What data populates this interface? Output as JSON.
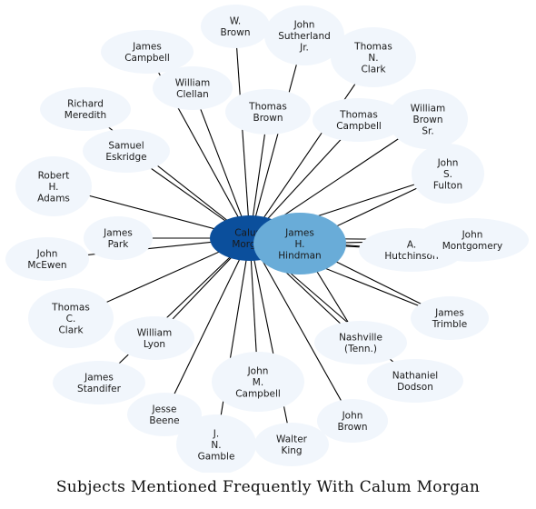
{
  "caption": "Subjects Mentioned Frequently With Calum Morgan",
  "colors": {
    "node_fill": "#f1f6fc",
    "edge": "#000000",
    "primary_fill": "#0b4f9c",
    "secondary_fill": "#69acd8"
  },
  "primary": {
    "id": "calum_morgan",
    "lines": [
      "Calum",
      "Morgan"
    ]
  },
  "secondary": {
    "id": "james_hindman",
    "lines": [
      "James",
      "H.",
      "Hindman"
    ]
  },
  "nodes": [
    {
      "id": "w_brown",
      "lines": [
        "W.",
        "Brown"
      ],
      "hindman_link": false
    },
    {
      "id": "john_sutherland_jr",
      "lines": [
        "John",
        "Sutherland",
        "Jr."
      ],
      "hindman_link": false
    },
    {
      "id": "thomas_n_clark",
      "lines": [
        "Thomas",
        "N.",
        "Clark"
      ],
      "hindman_link": false
    },
    {
      "id": "james_campbell_1",
      "lines": [
        "James",
        "Campbell"
      ],
      "hindman_link": false
    },
    {
      "id": "william_clellan",
      "lines": [
        "William",
        "Clellan"
      ],
      "hindman_link": false
    },
    {
      "id": "thomas_brown",
      "lines": [
        "Thomas",
        "Brown"
      ],
      "hindman_link": false
    },
    {
      "id": "thomas_campbell",
      "lines": [
        "Thomas",
        "Campbell"
      ],
      "hindman_link": false
    },
    {
      "id": "william_brown_sr",
      "lines": [
        "William",
        "Brown",
        "Sr."
      ],
      "hindman_link": false
    },
    {
      "id": "richard_meredith",
      "lines": [
        "Richard",
        "Meredith"
      ],
      "hindman_link": false
    },
    {
      "id": "samuel_eskridge",
      "lines": [
        "Samuel",
        "Eskridge"
      ],
      "hindman_link": false
    },
    {
      "id": "john_s_fulton",
      "lines": [
        "John",
        "S.",
        "Fulton"
      ],
      "hindman_link": true
    },
    {
      "id": "robert_h_adams",
      "lines": [
        "Robert",
        "H.",
        "Adams"
      ],
      "hindman_link": false
    },
    {
      "id": "james_park",
      "lines": [
        "James",
        "Park"
      ],
      "hindman_link": false
    },
    {
      "id": "a_hutchinson",
      "lines": [
        "A.",
        "Hutchinson"
      ],
      "hindman_link": true
    },
    {
      "id": "john_montgomery",
      "lines": [
        "John",
        "Montgomery"
      ],
      "hindman_link": true
    },
    {
      "id": "john_mcewen",
      "lines": [
        "John",
        "McEwen"
      ],
      "hindman_link": false
    },
    {
      "id": "thomas_c_clark",
      "lines": [
        "Thomas",
        "C.",
        "Clark"
      ],
      "hindman_link": false
    },
    {
      "id": "william_lyon",
      "lines": [
        "William",
        "Lyon"
      ],
      "hindman_link": false
    },
    {
      "id": "james_trimble",
      "lines": [
        "James",
        "Trimble"
      ],
      "hindman_link": true
    },
    {
      "id": "nashville_tenn",
      "lines": [
        "Nashville",
        "(Tenn.)"
      ],
      "hindman_link": true
    },
    {
      "id": "james_standifer",
      "lines": [
        "James",
        "Standifer"
      ],
      "hindman_link": false
    },
    {
      "id": "john_m_campbell",
      "lines": [
        "John",
        "M.",
        "Campbell"
      ],
      "hindman_link": false
    },
    {
      "id": "nathaniel_dodson",
      "lines": [
        "Nathaniel",
        "Dodson"
      ],
      "hindman_link": false
    },
    {
      "id": "jesse_beene",
      "lines": [
        "Jesse",
        "Beene"
      ],
      "hindman_link": false
    },
    {
      "id": "john_brown",
      "lines": [
        "John",
        "Brown"
      ],
      "hindman_link": false
    },
    {
      "id": "j_n_gamble",
      "lines": [
        "J.",
        "N.",
        "Gamble"
      ],
      "hindman_link": false
    },
    {
      "id": "walter_king",
      "lines": [
        "Walter",
        "King"
      ],
      "hindman_link": false
    }
  ]
}
